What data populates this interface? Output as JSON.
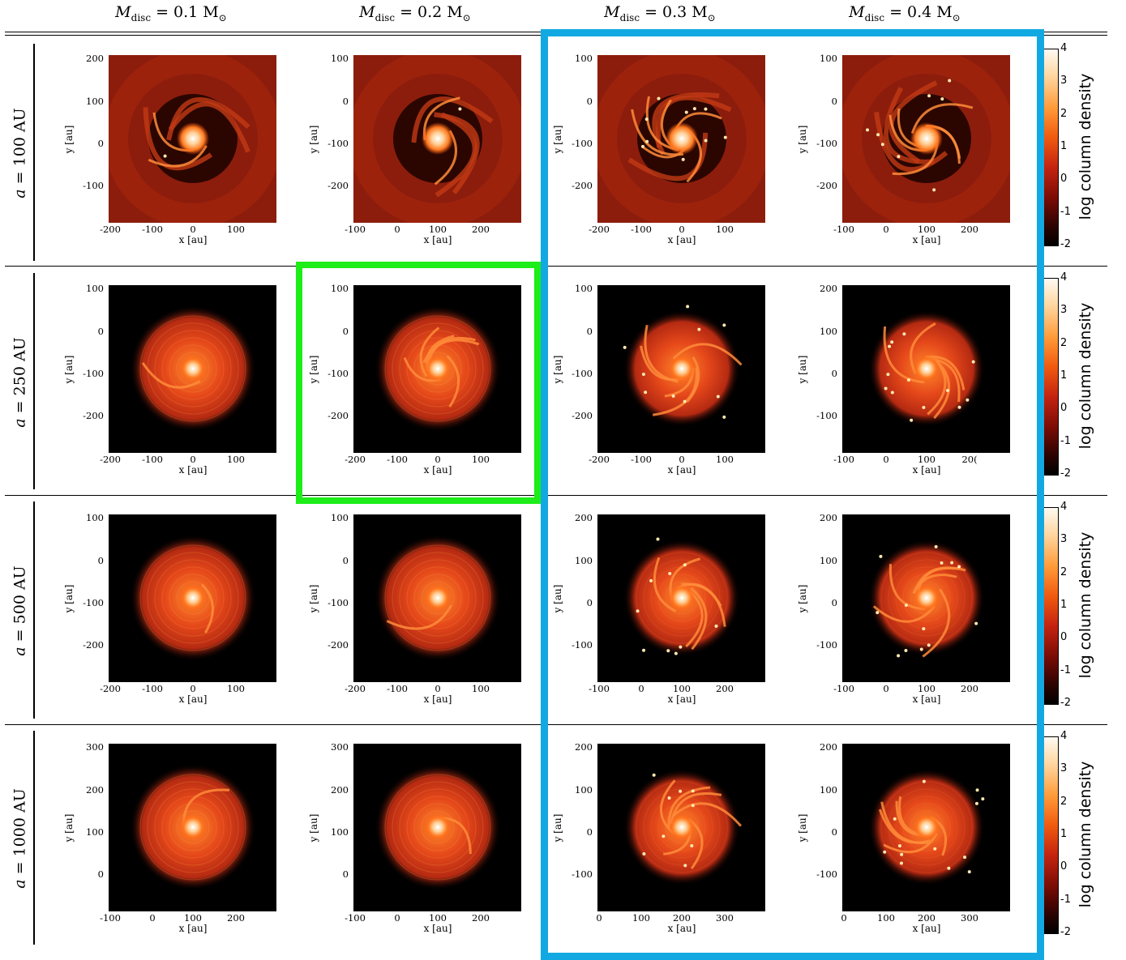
{
  "columns": [
    {
      "prefix": "M",
      "sub": "disc",
      "value": " = 0.1 M",
      "sun": "⊙"
    },
    {
      "prefix": "M",
      "sub": "disc",
      "value": " = 0.2 M",
      "sun": "⊙"
    },
    {
      "prefix": "M",
      "sub": "disc",
      "value": " = 0.3 M",
      "sun": "⊙"
    },
    {
      "prefix": "M",
      "sub": "disc",
      "value": " = 0.4 M",
      "sun": "⊙"
    }
  ],
  "rows": [
    {
      "italic": "a",
      "value": " = 100 AU"
    },
    {
      "italic": "a",
      "value": " = 250 AU"
    },
    {
      "italic": "a",
      "value": " = 500 AU"
    },
    {
      "italic": "a",
      "value": " = 1000 AU"
    }
  ],
  "axes": {
    "xlabel": "x [au]",
    "ylabel": "y [au]"
  },
  "colorbar": {
    "label": "log column density",
    "ticks": [
      "4",
      "3",
      "2",
      "1",
      "0",
      "-1",
      "-2"
    ],
    "range": [
      -2,
      4
    ]
  },
  "highlight_colors": {
    "blue": "#12a9e2",
    "green": "#1ded18"
  },
  "panels": [
    [
      {
        "yticks": [
          "200",
          "100",
          "0",
          "-100"
        ],
        "xticks": [
          "-200",
          "-100",
          "0",
          "100"
        ]
      },
      {
        "yticks": [
          "100",
          "0",
          "-100",
          "-200"
        ],
        "xticks": [
          "-100",
          "0",
          "100",
          "200"
        ]
      },
      {
        "yticks": [
          "100",
          "0",
          "-100",
          "-200"
        ],
        "xticks": [
          "-200",
          "-100",
          "0",
          "100"
        ]
      },
      {
        "yticks": [
          "100",
          "0",
          "-100",
          "-200"
        ],
        "xticks": [
          "-100",
          "0",
          "100",
          "200"
        ]
      }
    ],
    [
      {
        "yticks": [
          "100",
          "0",
          "-100",
          "-200"
        ],
        "xticks": [
          "-200",
          "-100",
          "0",
          "100"
        ]
      },
      {
        "yticks": [
          "100",
          "0",
          "-100",
          "-200"
        ],
        "xticks": [
          "-200",
          "-100",
          "0",
          "100"
        ]
      },
      {
        "yticks": [
          "100",
          "0",
          "-100",
          "-200"
        ],
        "xticks": [
          "-200",
          "-100",
          "0",
          "100"
        ]
      },
      {
        "yticks": [
          "200",
          "100",
          "0",
          "-100"
        ],
        "xticks": [
          "-100",
          "0",
          "100",
          "20("
        ]
      }
    ],
    [
      {
        "yticks": [
          "100",
          "0",
          "-100",
          "-200"
        ],
        "xticks": [
          "-200",
          "-100",
          "0",
          "100"
        ]
      },
      {
        "yticks": [
          "100",
          "0",
          "-100",
          "-200"
        ],
        "xticks": [
          "-200",
          "-100",
          "0",
          "100"
        ]
      },
      {
        "yticks": [
          "200",
          "100",
          "0",
          "-100"
        ],
        "xticks": [
          "-100",
          "0",
          "100",
          "200"
        ]
      },
      {
        "yticks": [
          "200",
          "100",
          "0",
          "-100"
        ],
        "xticks": [
          "-100",
          "0",
          "100",
          "200"
        ]
      }
    ],
    [
      {
        "yticks": [
          "300",
          "200",
          "100",
          "0"
        ],
        "xticks": [
          "-100",
          "0",
          "100",
          "200"
        ]
      },
      {
        "yticks": [
          "300",
          "200",
          "100",
          "0"
        ],
        "xticks": [
          "-100",
          "0",
          "100",
          "200"
        ]
      },
      {
        "yticks": [
          "200",
          "100",
          "0",
          "-100"
        ],
        "xticks": [
          "0",
          "100",
          "200",
          "300"
        ]
      },
      {
        "yticks": [
          "200",
          "100",
          "0",
          "-100"
        ],
        "xticks": [
          "0",
          "100",
          "200",
          "300"
        ]
      }
    ]
  ]
}
